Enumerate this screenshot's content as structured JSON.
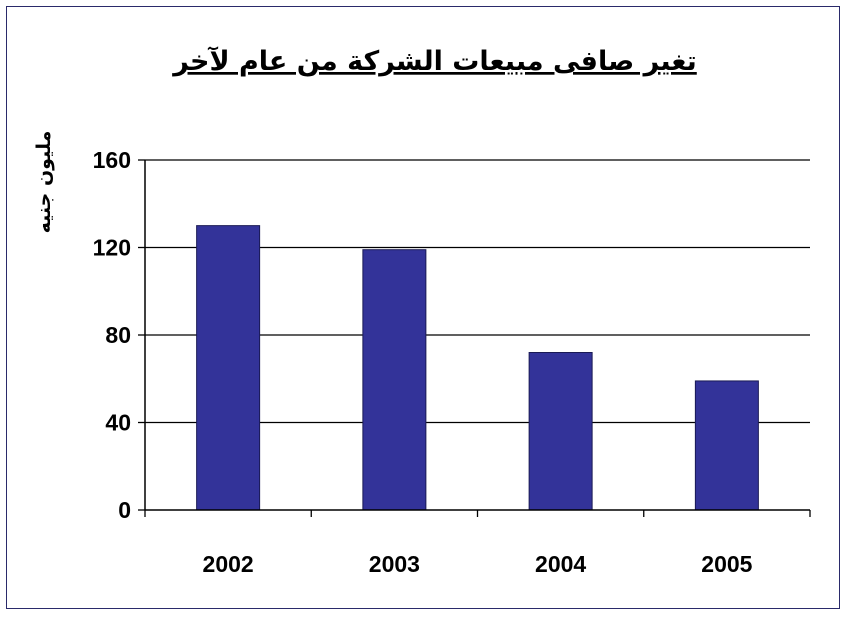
{
  "chart_data": {
    "type": "bar",
    "title": "تغير صافى مبيعات الشركة من عام لآخر",
    "ylabel": "مليون جنيه",
    "xlabel": "",
    "categories": [
      "2002",
      "2003",
      "2004",
      "2005"
    ],
    "values": [
      130,
      119,
      72,
      59
    ],
    "ylim": [
      0,
      160
    ],
    "yticks": [
      0,
      40,
      80,
      120,
      160
    ],
    "grid": true,
    "legend": "none",
    "bar_color": "#333399",
    "title_underline": true
  }
}
